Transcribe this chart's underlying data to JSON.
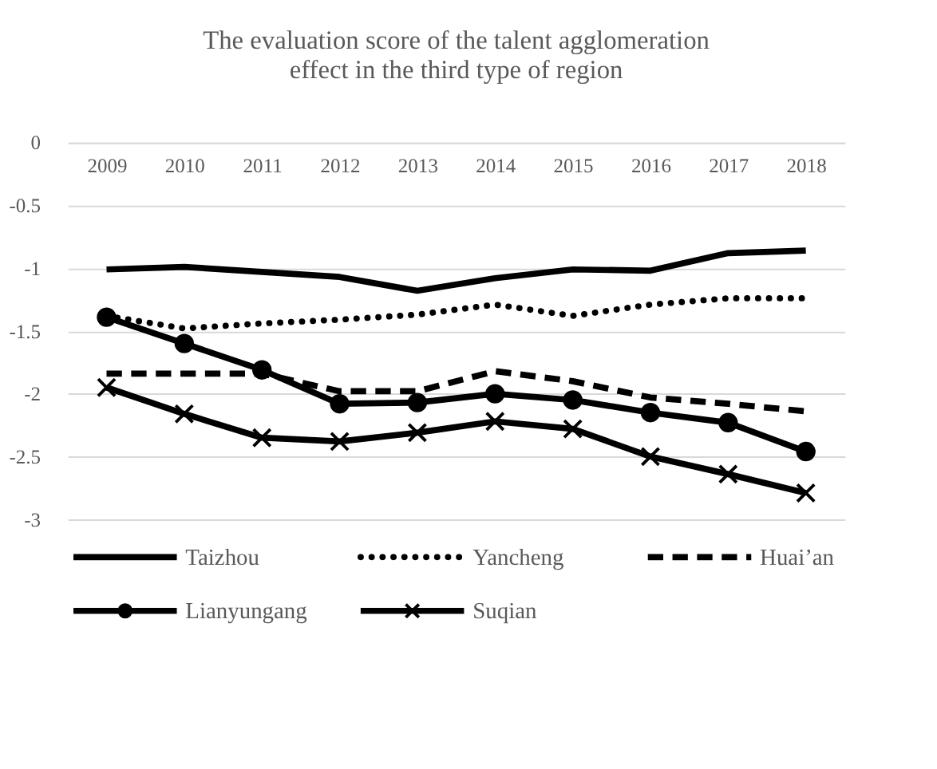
{
  "chart_data": {
    "type": "line",
    "title": "The evaluation score of the talent agglomeration effect in the third type of region",
    "categories": [
      "2009",
      "2010",
      "2011",
      "2012",
      "2013",
      "2014",
      "2015",
      "2016",
      "2017",
      "2018"
    ],
    "series": [
      {
        "name": "Taizhou",
        "color": "#000000",
        "line_style": "solid",
        "marker": "none",
        "values": [
          -1.01,
          -0.99,
          -1.03,
          -1.07,
          -1.18,
          -1.08,
          -1.01,
          -1.02,
          -0.88,
          -0.86
        ]
      },
      {
        "name": "Yancheng",
        "color": "#000000",
        "line_style": "dotted",
        "marker": "none",
        "values": [
          -1.38,
          -1.48,
          -1.44,
          -1.41,
          -1.37,
          -1.29,
          -1.38,
          -1.29,
          -1.24,
          -1.24
        ]
      },
      {
        "name": "Huai’an",
        "color": "#000000",
        "line_style": "dashed",
        "marker": "none",
        "values": [
          -1.84,
          -1.84,
          -1.84,
          -1.98,
          -1.98,
          -1.82,
          -1.9,
          -2.03,
          -2.08,
          -2.14
        ]
      },
      {
        "name": "Lianyungang",
        "color": "#000000",
        "line_style": "solid",
        "marker": "circle",
        "values": [
          -1.39,
          -1.6,
          -1.81,
          -2.08,
          -2.07,
          -2.0,
          -2.05,
          -2.15,
          -2.23,
          -2.46
        ]
      },
      {
        "name": "Suqian",
        "color": "#000000",
        "line_style": "solid",
        "marker": "cross",
        "values": [
          -1.95,
          -2.16,
          -2.35,
          -2.38,
          -2.31,
          -2.22,
          -2.28,
          -2.5,
          -2.64,
          -2.79
        ]
      }
    ],
    "ylim": [
      -3,
      0
    ],
    "yticks": [
      0,
      -0.5,
      -1,
      -1.5,
      -2,
      -2.5,
      -3
    ],
    "grid": "y",
    "legend": "bottom"
  }
}
